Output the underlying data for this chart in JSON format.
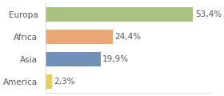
{
  "categories": [
    "America",
    "Asia",
    "Africa",
    "Europa"
  ],
  "values": [
    2.3,
    19.9,
    24.4,
    53.4
  ],
  "labels": [
    "2,3%",
    "19,9%",
    "24,4%",
    "53,4%"
  ],
  "bar_colors": [
    "#e8d060",
    "#7090b8",
    "#e8a878",
    "#a8c080"
  ],
  "background_color": "#ffffff",
  "xlim": [
    0,
    60
  ],
  "label_fontsize": 7.5,
  "tick_fontsize": 7.5
}
